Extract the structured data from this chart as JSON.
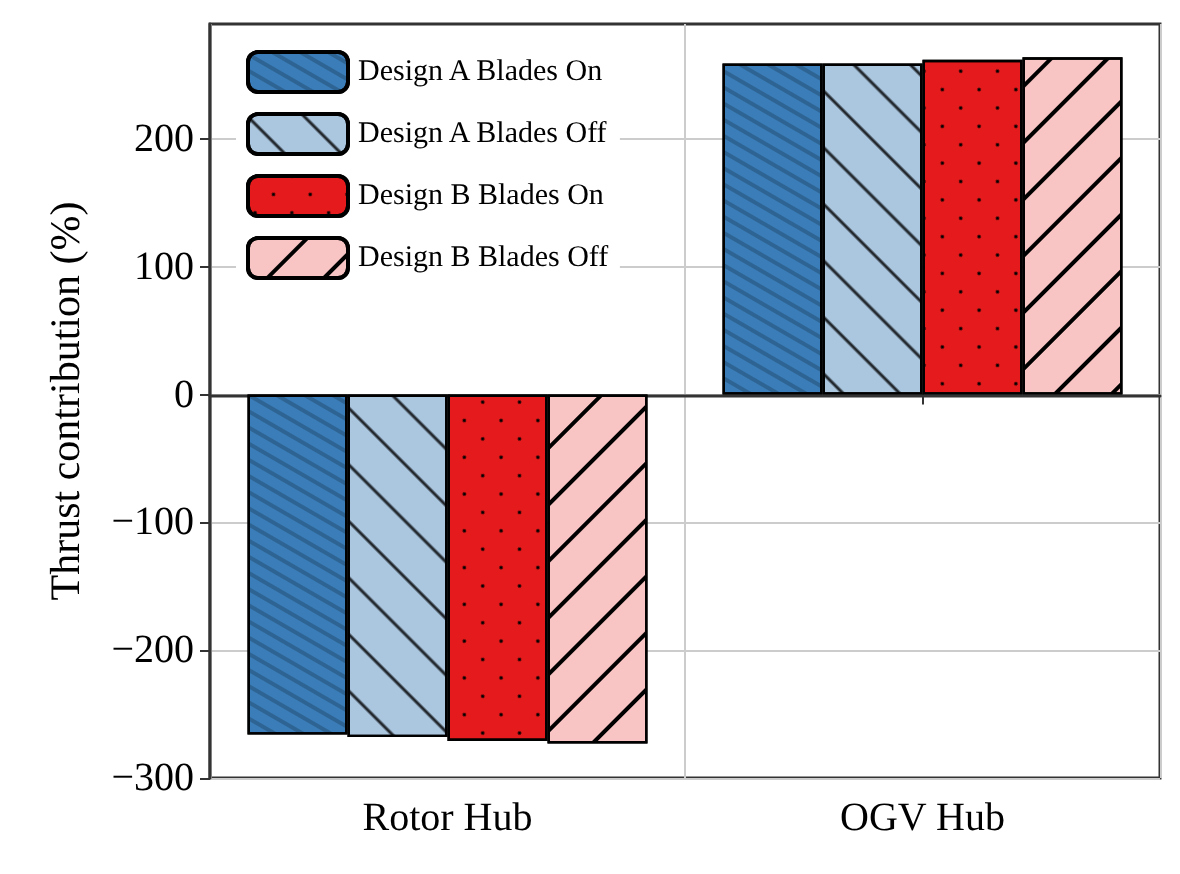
{
  "chart_data": {
    "type": "bar",
    "ylabel": "Thrust contribution (%)",
    "categories": [
      "Rotor Hub",
      "OGV Hub"
    ],
    "series": [
      {
        "name": "Design A Blades On",
        "color": "#3a7db8",
        "values": [
          -266,
          259
        ]
      },
      {
        "name": "Design A Blades Off",
        "color": "#abc7e0",
        "values": [
          -268,
          259
        ]
      },
      {
        "name": "Design B Blades On",
        "color": "#e41a1c",
        "values": [
          -271,
          262
        ]
      },
      {
        "name": "Design B Blades Off",
        "color": "#f9c4c4",
        "values": [
          -273,
          264
        ]
      }
    ],
    "ylim": [
      -300,
      290
    ],
    "yticks": [
      -300,
      -200,
      -100,
      0,
      100,
      200
    ],
    "grid": true,
    "legend": "top left"
  }
}
